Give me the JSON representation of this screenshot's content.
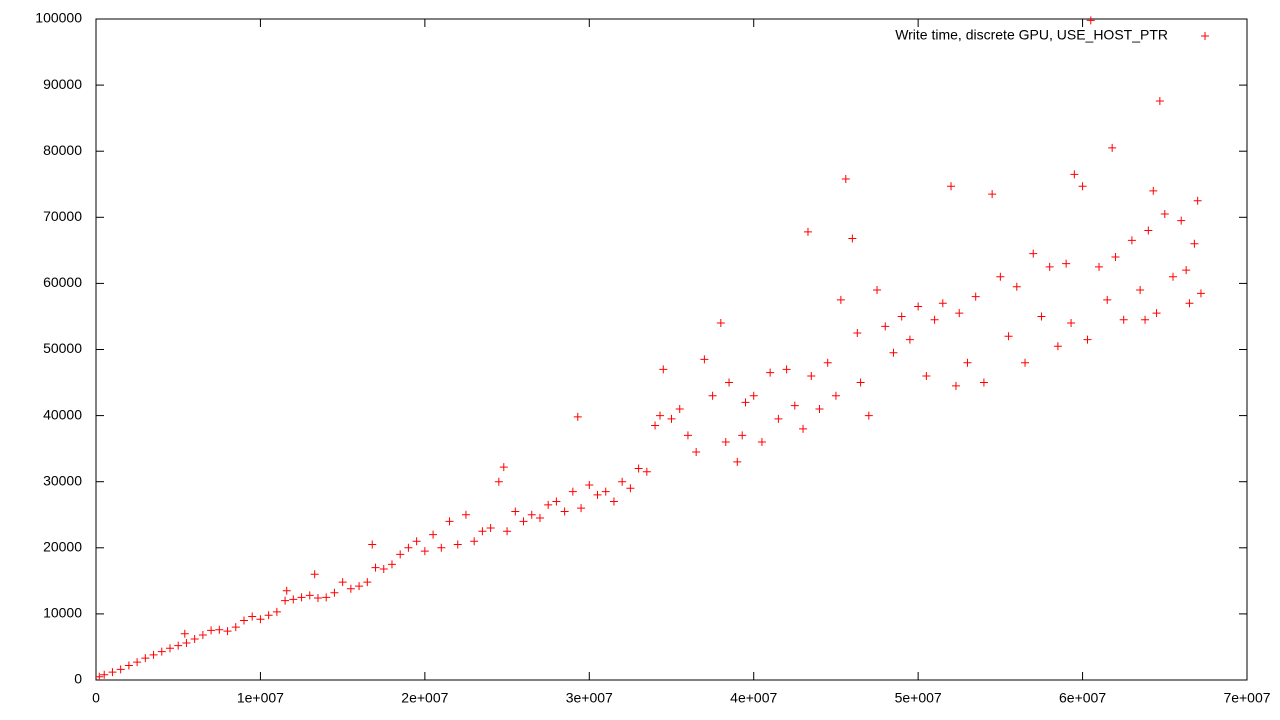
{
  "chart_data": {
    "type": "scatter",
    "x": [
      200000,
      500000,
      1000000,
      1500000,
      2000000,
      2500000,
      3000000,
      3500000,
      4000000,
      4500000,
      5000000,
      5400000,
      5500000,
      6000000,
      6500000,
      7000000,
      7500000,
      8000000,
      8500000,
      9000000,
      9500000,
      10000000,
      10500000,
      11000000,
      11500000,
      11600000,
      12000000,
      12500000,
      13000000,
      13300000,
      13500000,
      14000000,
      14500000,
      15000000,
      15500000,
      16000000,
      16500000,
      16800000,
      17000000,
      17500000,
      18000000,
      18500000,
      19000000,
      19500000,
      20000000,
      20500000,
      21000000,
      21500000,
      22000000,
      22500000,
      23000000,
      23500000,
      24000000,
      24500000,
      24800000,
      25000000,
      25500000,
      26000000,
      26500000,
      27000000,
      27500000,
      28000000,
      28500000,
      29000000,
      29300000,
      29500000,
      30000000,
      30500000,
      31000000,
      31500000,
      32000000,
      32500000,
      33000000,
      33500000,
      34000000,
      34300000,
      34500000,
      35000000,
      35500000,
      36000000,
      36500000,
      37000000,
      37500000,
      38000000,
      38300000,
      38500000,
      39000000,
      39300000,
      39500000,
      40000000,
      40500000,
      41000000,
      41500000,
      42000000,
      42500000,
      43000000,
      43300000,
      43500000,
      44000000,
      44500000,
      45000000,
      45300000,
      45600000,
      46000000,
      46300000,
      46500000,
      47000000,
      47500000,
      48000000,
      48500000,
      49000000,
      49500000,
      50000000,
      50500000,
      51000000,
      51500000,
      52000000,
      52300000,
      52500000,
      53000000,
      53500000,
      54000000,
      54500000,
      55000000,
      55500000,
      56000000,
      56500000,
      57000000,
      57500000,
      58000000,
      58500000,
      59000000,
      59300000,
      59500000,
      60000000,
      60300000,
      60500000,
      61000000,
      61500000,
      61800000,
      62000000,
      62500000,
      63000000,
      63500000,
      63800000,
      64000000,
      64300000,
      64500000,
      64700000,
      65000000,
      65500000,
      66000000,
      66300000,
      66500000,
      66800000,
      67000000,
      67200000
    ],
    "series": [
      {
        "name": "Write time, discrete GPU, USE_HOST_PTR",
        "color": "#ff0000",
        "values": [
          500,
          800,
          1200,
          1600,
          2200,
          2700,
          3300,
          3800,
          4300,
          4800,
          5200,
          7000,
          5600,
          6200,
          6800,
          7500,
          7600,
          7400,
          8000,
          9000,
          9600,
          9200,
          9800,
          10300,
          12000,
          13500,
          12200,
          12500,
          12800,
          16000,
          12400,
          12500,
          13200,
          14800,
          13800,
          14200,
          14800,
          20500,
          17000,
          16800,
          17500,
          19000,
          20000,
          21000,
          19500,
          22000,
          20000,
          24000,
          20500,
          25000,
          21000,
          22500,
          23000,
          30000,
          32200,
          22500,
          25500,
          24000,
          25000,
          24500,
          26500,
          27000,
          25500,
          28500,
          39800,
          26000,
          29500,
          28000,
          28500,
          27000,
          30000,
          29000,
          32000,
          31500,
          38500,
          40000,
          47000,
          39500,
          41000,
          37000,
          34500,
          48500,
          43000,
          54000,
          36000,
          45000,
          33000,
          37000,
          42000,
          43000,
          36000,
          46500,
          39500,
          47000,
          41500,
          38000,
          67800,
          46000,
          41000,
          48000,
          43000,
          57500,
          75800,
          66800,
          52500,
          45000,
          40000,
          59000,
          53500,
          49500,
          55000,
          51500,
          56500,
          46000,
          54500,
          57000,
          74700,
          44500,
          55500,
          48000,
          58000,
          45000,
          73500,
          61000,
          52000,
          59500,
          48000,
          64500,
          55000,
          62500,
          50500,
          63000,
          54000,
          76500,
          74700,
          51500,
          99800,
          62500,
          57500,
          80500,
          64000,
          54500,
          66500,
          59000,
          54500,
          68000,
          74000,
          55500,
          87600,
          70500,
          61000,
          69500,
          62000,
          57000,
          66000,
          72500,
          58500
        ]
      }
    ],
    "xlim": [
      0,
      70000000
    ],
    "xticks": [
      0,
      {
        "value": 10000000,
        "label": "1e+007"
      },
      {
        "value": 20000000,
        "label": "2e+007"
      },
      {
        "value": 30000000,
        "label": "3e+007"
      },
      {
        "value": 40000000,
        "label": "4e+007"
      },
      {
        "value": 50000000,
        "label": "5e+007"
      },
      {
        "value": 60000000,
        "label": "6e+007"
      },
      {
        "value": 70000000,
        "label": "7e+007"
      }
    ],
    "ylim": [
      0,
      100000
    ],
    "yticks": [
      0,
      10000,
      20000,
      30000,
      40000,
      50000,
      60000,
      70000,
      80000,
      90000,
      100000
    ],
    "legend": "top-right"
  }
}
